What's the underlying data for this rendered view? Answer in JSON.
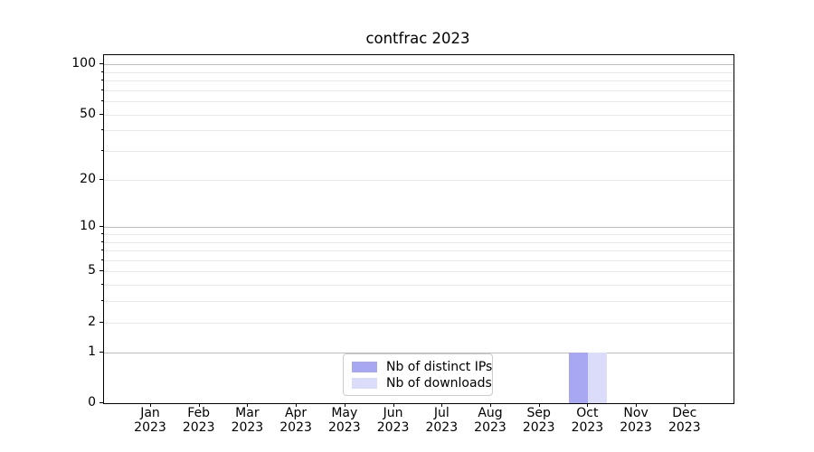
{
  "chart_data": {
    "type": "bar",
    "title": "contfrac 2023",
    "categories": [
      "Jan",
      "Feb",
      "Mar",
      "Apr",
      "May",
      "Jun",
      "Jul",
      "Aug",
      "Sep",
      "Oct",
      "Nov",
      "Dec"
    ],
    "category_year": "2023",
    "series": [
      {
        "name": "Nb of distinct IPs",
        "color": "#a8a8f2",
        "values": [
          0,
          0,
          0,
          0,
          0,
          0,
          0,
          0,
          0,
          1,
          0,
          0
        ]
      },
      {
        "name": "Nb of downloads",
        "color": "#dbdbfa",
        "values": [
          0,
          0,
          0,
          0,
          0,
          0,
          0,
          0,
          0,
          1,
          0,
          0
        ]
      }
    ],
    "xlabel": "",
    "ylabel": "",
    "y_ticks": [
      0,
      1,
      2,
      5,
      10,
      20,
      50,
      100
    ],
    "y_scale": "log-like (log10 of 1+value), 0 at baseline",
    "ylim": [
      0,
      113
    ],
    "grid": "horizontal, major lines at 1/10/100, minor lines at 2-9 and 20-90 multiples",
    "legend_position": "bottom-center-left inside plot"
  }
}
